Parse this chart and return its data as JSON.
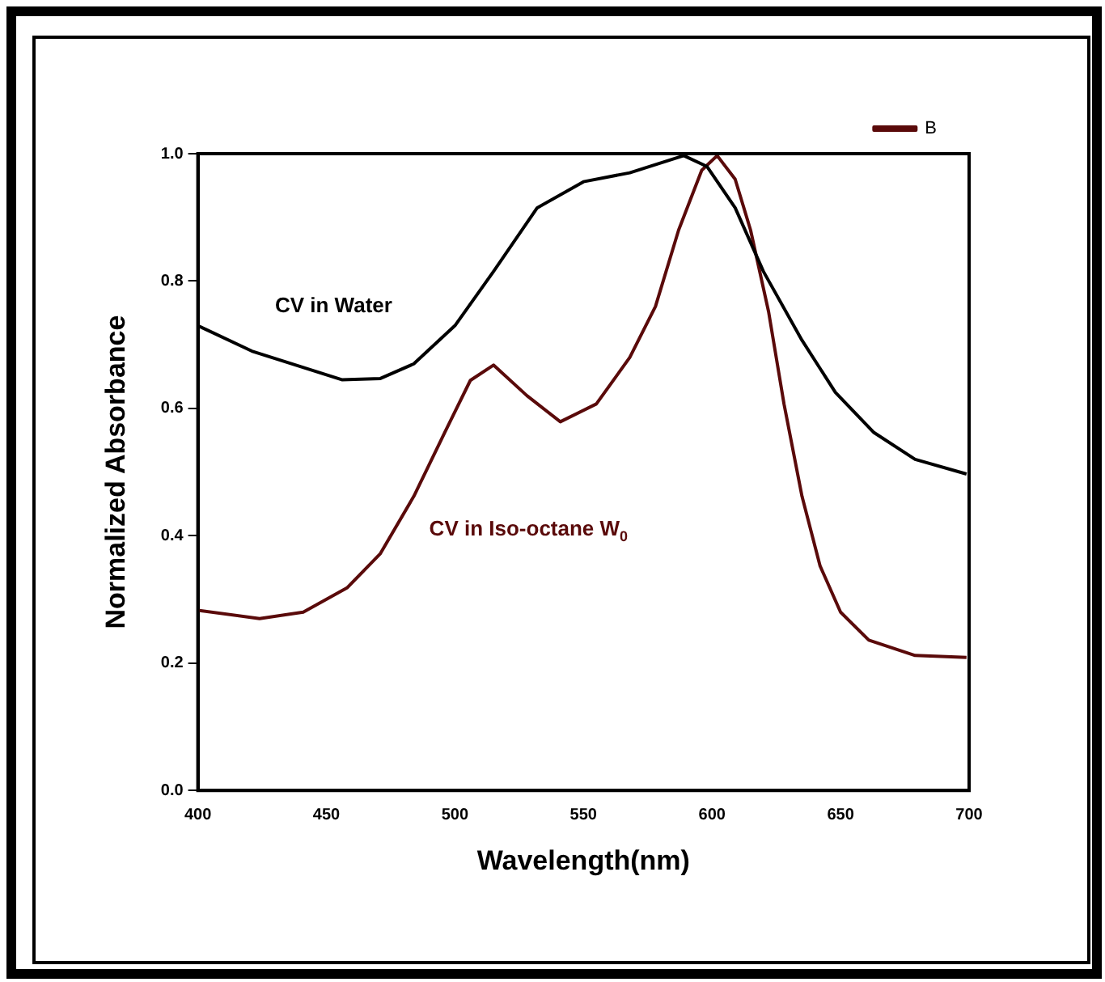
{
  "chart_data": {
    "type": "line",
    "xlabel": "Wavelength(nm)",
    "ylabel": "Normalized Absorbance",
    "xlim": [
      400,
      700
    ],
    "xticks": [
      400,
      450,
      500,
      550,
      600,
      650,
      700
    ],
    "ylim": [
      0,
      1.0
    ],
    "yticks": [
      {
        "value": 0,
        "label": "0.0"
      },
      0.2,
      0.4,
      0.6,
      0.8,
      {
        "value": 1.0,
        "label": "1.0"
      }
    ],
    "grid": false,
    "legend": "top right",
    "marker": "none",
    "line_style": "solid",
    "series": [
      {
        "color": "#000000",
        "x": [
          400,
          421,
          456,
          471,
          484,
          500,
          515,
          532,
          550,
          568,
          589,
          598,
          609,
          620,
          635,
          648,
          663,
          679,
          699
        ],
        "values": [
          0.73,
          0.69,
          0.645,
          0.647,
          0.67,
          0.73,
          0.815,
          0.915,
          0.956,
          0.97,
          0.997,
          0.98,
          0.915,
          0.815,
          0.707,
          0.625,
          0.562,
          0.52,
          0.497
        ]
      },
      {
        "name": "B",
        "color": "#5a0a0a",
        "x": [
          400,
          424,
          441,
          458,
          471,
          484,
          496,
          506,
          515,
          528,
          541,
          555,
          568,
          578,
          587,
          596,
          602,
          609,
          615,
          622,
          628,
          635,
          642,
          650,
          661,
          679,
          699
        ],
        "values": [
          0.283,
          0.27,
          0.28,
          0.318,
          0.372,
          0.462,
          0.562,
          0.644,
          0.668,
          0.62,
          0.579,
          0.607,
          0.68,
          0.76,
          0.88,
          0.974,
          0.997,
          0.96,
          0.88,
          0.752,
          0.607,
          0.462,
          0.353,
          0.28,
          0.236,
          0.212,
          0.209
        ]
      }
    ],
    "annotations": [
      "CV in Water",
      "CV in Iso-octane W$_{0}$"
    ]
  }
}
